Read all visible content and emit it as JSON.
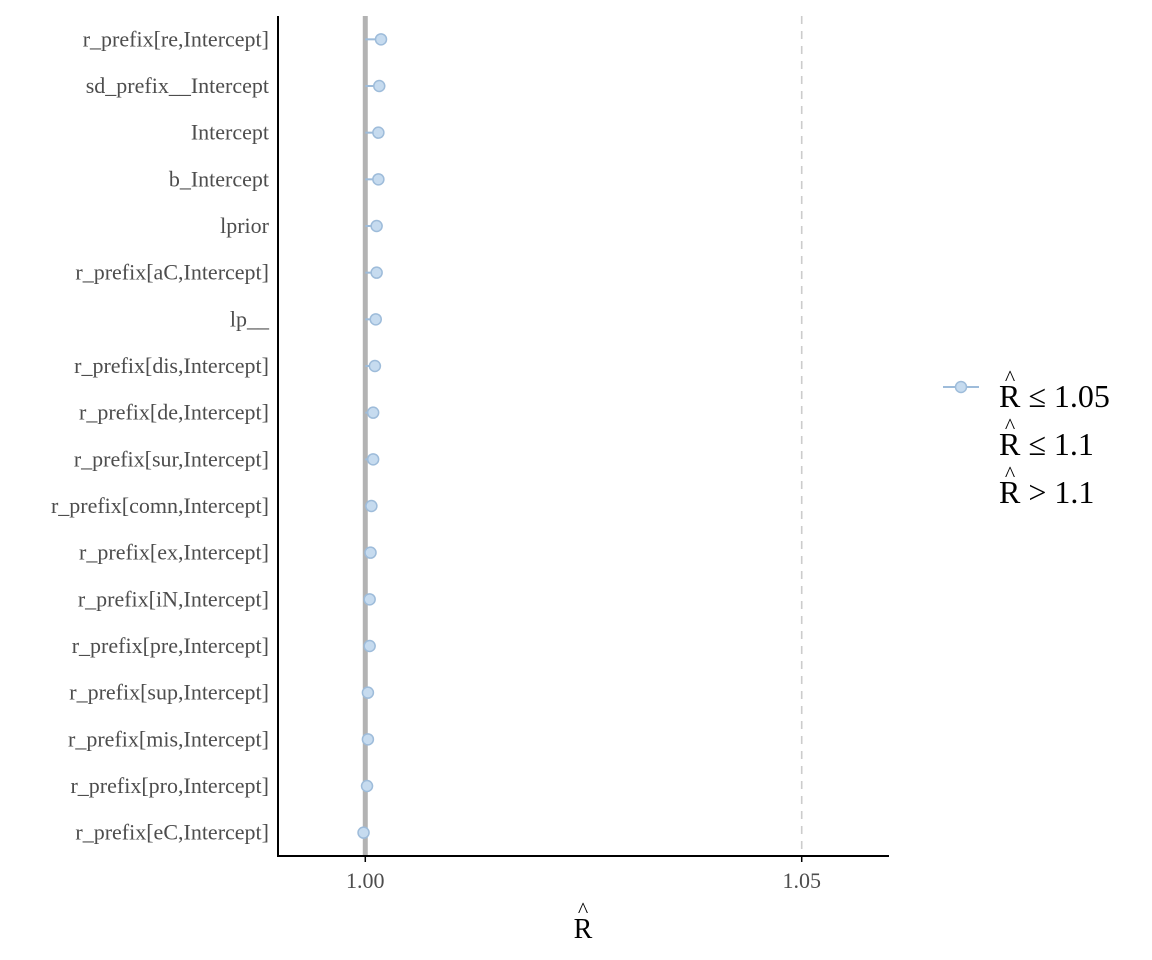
{
  "chart_data": {
    "type": "scatter",
    "title": "",
    "xlabel": "R",
    "xlabel_hat": "^",
    "ylabel": "",
    "xlim": [
      0.99,
      1.06
    ],
    "x_ticks": [
      1.0,
      1.05
    ],
    "x_tick_labels": [
      "1.00",
      "1.05"
    ],
    "reference_lines": [
      {
        "x": 1.0,
        "style": "solid",
        "color": "#b3b3b3"
      },
      {
        "x": 1.05,
        "style": "dashed",
        "color": "#cccccc"
      }
    ],
    "categories": [
      "r_prefix[re,Intercept]",
      "sd_prefix__Intercept",
      "Intercept",
      "b_Intercept",
      "lprior",
      "r_prefix[aC,Intercept]",
      "lp__",
      "r_prefix[dis,Intercept]",
      "r_prefix[de,Intercept]",
      "r_prefix[sur,Intercept]",
      "r_prefix[comn,Intercept]",
      "r_prefix[ex,Intercept]",
      "r_prefix[iN,Intercept]",
      "r_prefix[pre,Intercept]",
      "r_prefix[sup,Intercept]",
      "r_prefix[mis,Intercept]",
      "r_prefix[pro,Intercept]",
      "r_prefix[eC,Intercept]"
    ],
    "values": [
      1.0018,
      1.0016,
      1.0015,
      1.0015,
      1.0013,
      1.0013,
      1.0012,
      1.0011,
      1.0009,
      1.0009,
      1.0007,
      1.0006,
      1.0005,
      1.0005,
      1.0003,
      1.0003,
      1.0002,
      0.9998
    ],
    "series": [
      {
        "name": "R ≤ 1.05",
        "hat": "^",
        "color": "#c6dbef",
        "stroke": "#9ebcda"
      }
    ],
    "legend_entries": [
      {
        "text": "R ≤ 1.05",
        "hat": "^"
      },
      {
        "text": "R ≤ 1.1",
        "hat": "^"
      },
      {
        "text": "R > 1.1",
        "hat": "^"
      }
    ],
    "legend_position": "right",
    "grid": false
  }
}
